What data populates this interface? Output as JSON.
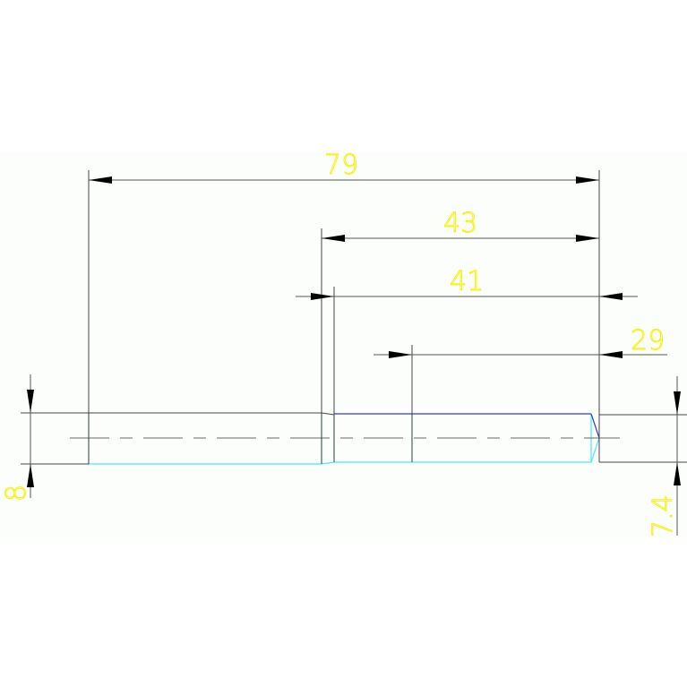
{
  "drawing": {
    "dimensions": {
      "overall_length": "79",
      "length_43": "43",
      "length_41": "41",
      "length_29": "29",
      "left_diameter": "8",
      "right_diameter": "7.4"
    },
    "colors": {
      "dimension_text": "#f4f000",
      "part_outline": "#4ee8f0",
      "chamfer_edge": "#3a3ad0",
      "dimension_lines": "#555555"
    }
  }
}
